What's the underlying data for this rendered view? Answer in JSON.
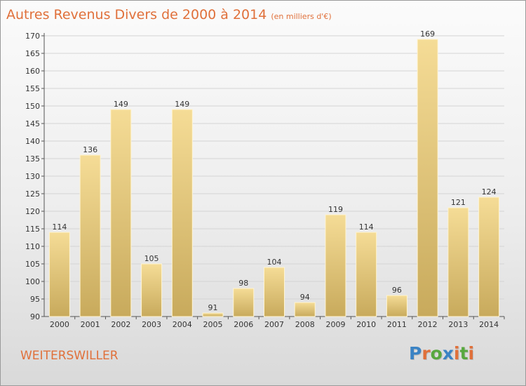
{
  "header": {
    "title": "Autres Revenus Divers de 2000 à 2014",
    "unit": "(en milliers d'€)"
  },
  "footer": {
    "place": "WEITERSWILLER",
    "logo_letters": [
      "P",
      "r",
      "o",
      "x",
      "i",
      "t",
      "i"
    ],
    "logo_colors": [
      "#3b83c4",
      "#e0703a",
      "#58a83f",
      "#3b83c4",
      "#e0703a",
      "#58a83f",
      "#e0703a"
    ]
  },
  "colors": {
    "bar_top": "#f5dc96",
    "bar_bottom": "#c8aa5c",
    "accent": "#e0703a"
  },
  "chart_data": {
    "type": "bar",
    "title": "Autres Revenus Divers de 2000 à 2014",
    "subtitle": "(en milliers d'€)",
    "xlabel": "",
    "ylabel": "",
    "categories": [
      "2000",
      "2001",
      "2002",
      "2003",
      "2004",
      "2005",
      "2006",
      "2007",
      "2008",
      "2009",
      "2010",
      "2011",
      "2012",
      "2013",
      "2014"
    ],
    "values": [
      114,
      136,
      149,
      105,
      149,
      91,
      98,
      104,
      94,
      119,
      114,
      96,
      169,
      121,
      124
    ],
    "ylim": [
      90,
      170
    ],
    "yticks": [
      90,
      95,
      100,
      105,
      110,
      115,
      120,
      125,
      130,
      135,
      140,
      145,
      150,
      155,
      160,
      165,
      170
    ],
    "grid": true,
    "data_labels": true
  }
}
